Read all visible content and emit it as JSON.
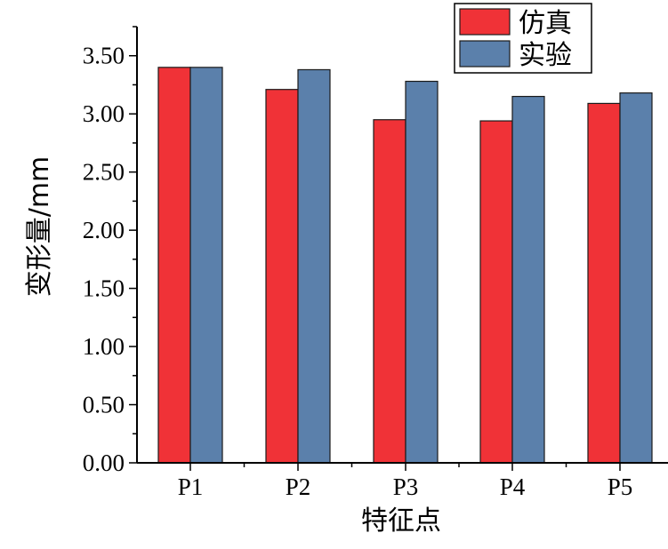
{
  "chart_data": {
    "type": "bar",
    "title": "",
    "xlabel": "特征点",
    "ylabel": "变形量/mm",
    "categories": [
      "P1",
      "P2",
      "P3",
      "P4",
      "P5"
    ],
    "series": [
      {
        "name": "仿真",
        "color": "#f03237",
        "values": [
          3.4,
          3.21,
          2.95,
          2.94,
          3.09
        ]
      },
      {
        "name": "实验",
        "color": "#5b80ab",
        "values": [
          3.4,
          3.38,
          3.28,
          3.15,
          3.18
        ]
      }
    ],
    "ylim": [
      0,
      3.75
    ],
    "yticks": [
      "0.00",
      "0.50",
      "1.00",
      "1.50",
      "2.00",
      "2.50",
      "3.00",
      "3.50"
    ],
    "ytick_values": [
      0,
      0.5,
      1.0,
      1.5,
      2.0,
      2.5,
      3.0,
      3.5
    ],
    "grid": false,
    "legend_position": "top-right"
  }
}
